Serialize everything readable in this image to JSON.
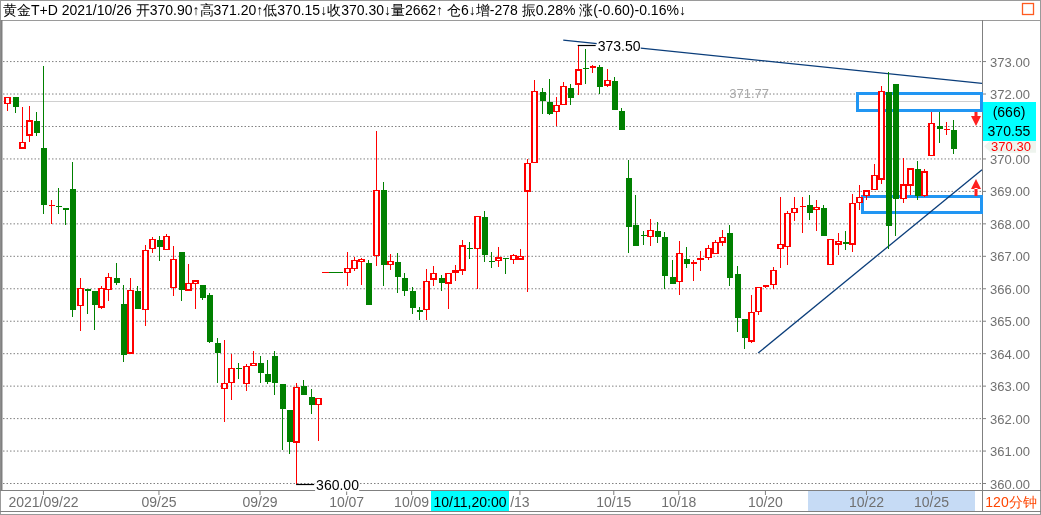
{
  "chart_data": {
    "type": "candlestick",
    "title": "黄金T+D 2021/10/26 开370.90↑高371.20↑低370.15↓收370.30↓量2662↑ 仓6↓增-278 振0.28% 涨(-0.60)-0.16%↓",
    "categories": [
      null,
      null,
      null,
      null,
      null,
      "2021/09/22",
      null,
      null,
      null,
      null,
      null,
      null,
      null,
      null,
      null,
      null,
      null,
      null,
      null,
      null,
      null,
      "09/25",
      null,
      null,
      null,
      null,
      null,
      null,
      null,
      null,
      null,
      null,
      null,
      null,
      null,
      "09/29",
      null,
      null,
      null,
      null,
      null,
      null,
      null,
      null,
      null,
      null,
      null,
      "10/07",
      null,
      null,
      null,
      null,
      null,
      null,
      null,
      null,
      "10/09",
      null,
      null,
      null,
      null,
      null,
      null,
      null,
      null,
      null,
      null,
      null,
      null,
      null,
      null,
      "/13",
      null,
      null,
      null,
      null,
      null,
      null,
      null,
      null,
      null,
      null,
      null,
      null,
      "10/15",
      null,
      null,
      null,
      null,
      null,
      null,
      null,
      null,
      "10/18",
      null,
      null,
      null,
      null,
      null,
      null,
      null,
      null,
      null,
      null,
      null,
      "10/20",
      null,
      null,
      null,
      null,
      null,
      null,
      null,
      null,
      null,
      null,
      null,
      null,
      null,
      "10/22",
      null,
      null,
      null,
      null,
      null,
      null,
      null,
      null,
      "10/25",
      null,
      null,
      null,
      null,
      null,
      null,
      null
    ],
    "ohlc": [
      [
        371.72,
        371.92,
        371.49,
        371.9
      ],
      [
        371.92,
        371.92,
        371.41,
        371.59
      ],
      [
        370.34,
        371.59,
        370.34,
        370.5
      ],
      [
        370.74,
        371.64,
        370.51,
        371.17
      ],
      [
        371.17,
        371.44,
        370.72,
        370.79
      ],
      [
        370.35,
        372.87,
        368.3,
        368.57
      ],
      [
        368.55,
        368.72,
        368.0,
        368.57
      ],
      [
        368.56,
        369.09,
        368.3,
        368.51
      ],
      [
        368.5,
        368.5,
        367.96,
        368.42
      ],
      [
        369.06,
        369.92,
        365.12,
        365.34
      ],
      [
        365.48,
        366.32,
        364.69,
        366.0
      ],
      [
        366.0,
        366.0,
        365.21,
        365.94
      ],
      [
        365.92,
        365.92,
        364.72,
        365.5
      ],
      [
        365.44,
        366.1,
        365.37,
        366.0
      ],
      [
        365.97,
        366.5,
        365.62,
        366.34
      ],
      [
        366.34,
        366.78,
        366.13,
        366.17
      ],
      [
        365.52,
        366.13,
        363.74,
        363.96
      ],
      [
        364.02,
        366.32,
        364.02,
        365.94
      ],
      [
        365.94,
        366.07,
        365.37,
        365.37
      ],
      [
        365.37,
        367.36,
        364.85,
        367.17
      ],
      [
        367.23,
        367.58,
        367.1,
        367.51
      ],
      [
        367.51,
        367.63,
        366.87,
        367.28
      ],
      [
        367.21,
        367.69,
        367.18,
        367.6
      ],
      [
        366.03,
        367.33,
        365.79,
        366.89
      ],
      [
        367.12,
        367.12,
        365.62,
        365.96
      ],
      [
        365.96,
        366.75,
        365.96,
        366.15
      ],
      [
        366.17,
        366.26,
        365.37,
        366.24
      ],
      [
        366.13,
        366.13,
        365.65,
        365.71
      ],
      [
        365.82,
        365.88,
        364.32,
        364.35
      ],
      [
        364.32,
        364.47,
        363.1,
        364.02
      ],
      [
        362.92,
        364.41,
        361.9,
        363.08
      ],
      [
        363.11,
        364.0,
        362.58,
        363.54
      ],
      [
        363.54,
        363.7,
        363.23,
        363.52
      ],
      [
        363.08,
        363.69,
        362.85,
        363.61
      ],
      [
        363.63,
        364.07,
        363.63,
        363.69
      ],
      [
        363.7,
        363.94,
        363.1,
        363.42
      ],
      [
        363.36,
        363.79,
        363.06,
        363.13
      ],
      [
        363.92,
        364.07,
        362.74,
        363.1
      ],
      [
        363.08,
        363.08,
        361.03,
        362.3
      ],
      [
        362.28,
        362.28,
        360.92,
        361.28
      ],
      [
        361.28,
        363.11,
        360.0,
        362.95
      ],
      [
        363.0,
        363.18,
        362.73,
        362.73
      ],
      [
        362.66,
        362.9,
        362.14,
        362.41
      ],
      [
        362.43,
        362.62,
        361.32,
        362.62
      ],
      [
        366.5,
        366.5,
        366.5,
        366.5
      ],
      [
        366.5,
        366.5,
        366.5,
        366.5
      ],
      [
        366.5,
        366.5,
        366.5,
        366.5
      ],
      [
        366.51,
        367.12,
        366.1,
        366.62
      ],
      [
        366.62,
        366.99,
        366.56,
        366.86
      ],
      [
        366.83,
        366.95,
        366.13,
        366.89
      ],
      [
        366.8,
        366.89,
        365.5,
        365.5
      ],
      [
        367.02,
        370.87,
        366.7,
        369.02
      ],
      [
        369.05,
        369.3,
        366.1,
        366.74
      ],
      [
        366.74,
        367.06,
        366.58,
        366.83
      ],
      [
        366.83,
        367.11,
        365.88,
        366.36
      ],
      [
        366.34,
        366.48,
        365.77,
        365.93
      ],
      [
        365.92,
        366.06,
        365.23,
        365.41
      ],
      [
        365.36,
        365.43,
        365.05,
        365.28
      ],
      [
        365.37,
        366.62,
        365.05,
        366.22
      ],
      [
        366.3,
        366.69,
        366.08,
        366.46
      ],
      [
        366.34,
        366.41,
        365.93,
        366.17
      ],
      [
        366.18,
        366.5,
        365.37,
        366.46
      ],
      [
        366.49,
        366.72,
        366.24,
        366.55
      ],
      [
        366.58,
        367.51,
        366.42,
        367.32
      ],
      [
        367.26,
        367.45,
        366.91,
        367.22
      ],
      [
        367.23,
        368.22,
        365.99,
        368.22
      ],
      [
        368.22,
        368.41,
        366.84,
        367.04
      ],
      [
        366.84,
        367.14,
        366.64,
        366.83
      ],
      [
        366.86,
        367.29,
        366.67,
        366.95
      ],
      [
        366.95,
        366.95,
        366.45,
        366.91
      ],
      [
        366.9,
        367.07,
        366.77,
        367.02
      ],
      [
        366.92,
        367.24,
        366.88,
        366.99
      ],
      [
        369.01,
        369.99,
        365.9,
        369.85
      ],
      [
        369.88,
        372.42,
        369.88,
        372.07
      ],
      [
        372.07,
        372.2,
        371.38,
        371.78
      ],
      [
        371.75,
        372.45,
        371.34,
        371.38
      ],
      [
        371.45,
        371.92,
        371.0,
        371.64
      ],
      [
        371.67,
        372.38,
        371.67,
        372.22
      ],
      [
        372.2,
        372.3,
        371.66,
        371.87
      ],
      [
        372.31,
        373.5,
        371.98,
        372.74
      ],
      [
        372.78,
        373.38,
        372.3,
        372.77
      ],
      [
        372.82,
        372.9,
        372.64,
        372.84
      ],
      [
        372.82,
        372.9,
        372.0,
        372.21
      ],
      [
        372.28,
        372.78,
        372.21,
        372.41
      ],
      [
        372.41,
        372.54,
        371.5,
        371.5
      ],
      [
        371.49,
        371.58,
        370.89,
        370.89
      ],
      [
        369.4,
        369.98,
        367.1,
        367.9
      ],
      [
        367.97,
        368.88,
        367.32,
        367.32
      ],
      [
        367.64,
        367.79,
        367.35,
        367.62
      ],
      [
        367.61,
        368.16,
        367.32,
        367.79
      ],
      [
        367.79,
        368.07,
        367.41,
        367.59
      ],
      [
        367.58,
        367.74,
        365.99,
        366.39
      ],
      [
        366.37,
        366.88,
        366.15,
        366.15
      ],
      [
        366.22,
        367.46,
        365.81,
        367.08
      ],
      [
        366.93,
        367.28,
        366.64,
        366.76
      ],
      [
        366.77,
        366.9,
        366.24,
        366.79
      ],
      [
        366.89,
        367.15,
        366.55,
        366.93
      ],
      [
        366.96,
        367.36,
        366.89,
        367.24
      ],
      [
        367.08,
        367.49,
        367.08,
        367.42
      ],
      [
        367.44,
        367.82,
        367.33,
        367.57
      ],
      [
        367.71,
        367.97,
        366.08,
        366.33
      ],
      [
        366.44,
        366.69,
        364.67,
        365.1
      ],
      [
        365.08,
        365.08,
        364.13,
        364.49
      ],
      [
        364.39,
        365.8,
        364.33,
        365.27
      ],
      [
        365.31,
        366.06,
        365.18,
        366.03
      ],
      [
        366.06,
        366.1,
        366.03,
        366.08
      ],
      [
        366.13,
        366.67,
        366.0,
        366.56
      ],
      [
        367.23,
        368.82,
        366.65,
        367.36
      ],
      [
        367.31,
        368.41,
        366.73,
        368.31
      ],
      [
        368.34,
        368.82,
        368.1,
        368.48
      ],
      [
        368.52,
        368.82,
        367.71,
        368.53
      ],
      [
        368.59,
        368.9,
        368.12,
        368.33
      ],
      [
        368.44,
        368.74,
        367.77,
        368.5
      ],
      [
        368.5,
        368.59,
        367.62,
        367.62
      ],
      [
        366.74,
        367.51,
        366.74,
        367.51
      ],
      [
        367.38,
        367.72,
        367.04,
        367.45
      ],
      [
        367.45,
        367.79,
        367.18,
        367.38
      ],
      [
        367.38,
        368.92,
        367.13,
        368.62
      ],
      [
        368.67,
        369.21,
        368.43,
        368.82
      ],
      [
        368.88,
        369.03,
        368.75,
        369.01
      ],
      [
        369.05,
        369.83,
        369.05,
        369.48
      ],
      [
        369.38,
        372.26,
        369.23,
        372.07
      ],
      [
        372.05,
        372.67,
        367.21,
        367.93
      ],
      [
        372.32,
        372.32,
        367.64,
        368.76
      ],
      [
        368.79,
        370.02,
        368.64,
        369.2
      ],
      [
        369.2,
        369.69,
        368.9,
        369.69
      ],
      [
        369.69,
        369.95,
        368.74,
        368.87
      ],
      [
        368.87,
        369.69,
        368.82,
        369.6
      ],
      [
        370.11,
        371.44,
        370.08,
        371.1
      ],
      [
        371.03,
        371.44,
        370.48,
        370.92
      ],
      [
        370.88,
        371.14,
        370.75,
        370.9
      ],
      [
        370.9,
        371.2,
        370.15,
        370.3
      ],
      null,
      null,
      null,
      null
    ],
    "colors": [
      "#ff0000",
      "#008000",
      "#ff0000",
      "#ff0000",
      "#008000",
      "#008000",
      "#ff0000",
      "#008000",
      "#008000",
      "#008000",
      "#ff0000",
      "#008000",
      "#008000",
      "#ff0000",
      "#ff0000",
      "#008000",
      "#008000",
      "#ff0000",
      "#008000",
      "#ff0000",
      "#ff0000",
      "#008000",
      "#ff0000",
      "#ff0000",
      "#008000",
      "#ff0000",
      "#ff0000",
      "#008000",
      "#008000",
      "#008000",
      "#ff0000",
      "#ff0000",
      "#008000",
      "#ff0000",
      "#ff0000",
      "#008000",
      "#008000",
      "#008000",
      "#008000",
      "#008000",
      "#ff0000",
      "#008000",
      "#008000",
      "#ff0000",
      "#ff0000",
      "#008000",
      "#008000",
      "#ff0000",
      "#ff0000",
      "#ff0000",
      "#008000",
      "#ff0000",
      "#008000",
      "#ff0000",
      "#008000",
      "#008000",
      "#008000",
      "#008000",
      "#ff0000",
      "#ff0000",
      "#008000",
      "#ff0000",
      "#ff0000",
      "#ff0000",
      "#008000",
      "#ff0000",
      "#008000",
      "#008000",
      "#ff0000",
      "#008000",
      "#ff0000",
      "#ff0000",
      "#ff0000",
      "#ff0000",
      "#008000",
      "#008000",
      "#ff0000",
      "#ff0000",
      "#008000",
      "#ff0000",
      "#008000",
      "#ff0000",
      "#008000",
      "#ff0000",
      "#008000",
      "#008000",
      "#008000",
      "#008000",
      "#008000",
      "#ff0000",
      "#008000",
      "#008000",
      "#008000",
      "#ff0000",
      "#008000",
      "#ff0000",
      "#ff0000",
      "#ff0000",
      "#ff0000",
      "#ff0000",
      "#008000",
      "#008000",
      "#008000",
      "#ff0000",
      "#ff0000",
      "#ff0000",
      "#ff0000",
      "#ff0000",
      "#ff0000",
      "#ff0000",
      "#ff0000",
      "#008000",
      "#ff0000",
      "#008000",
      "#ff0000",
      "#ff0000",
      "#008000",
      "#ff0000",
      "#ff0000",
      "#ff0000",
      "#ff0000",
      "#ff0000",
      "#008000",
      "#008000",
      "#ff0000",
      "#ff0000",
      "#008000",
      "#ff0000",
      "#ff0000",
      "#008000",
      "#ff0000",
      "#008000",
      null,
      null,
      null,
      null
    ],
    "series": [
      {
        "type": "line",
        "color": "#0a3d7a",
        "values": [
          null,
          null,
          null,
          null,
          null,
          null,
          null,
          null,
          null,
          null,
          null,
          null,
          null,
          null,
          null,
          null,
          null,
          null,
          null,
          null,
          null,
          null,
          null,
          null,
          null,
          null,
          null,
          null,
          null,
          null,
          null,
          null,
          null,
          null,
          null,
          null,
          null,
          null,
          null,
          null,
          null,
          null,
          null,
          null,
          null,
          null,
          null,
          null,
          null,
          null,
          null,
          null,
          null,
          null,
          null,
          null,
          null,
          null,
          null,
          null,
          null,
          null,
          null,
          null,
          null,
          null,
          null,
          null,
          null,
          null,
          null,
          null,
          null,
          null,
          null,
          null,
          null,
          373.66,
          null,
          null,
          null,
          null,
          null,
          null,
          null,
          null,
          null,
          null,
          null,
          null,
          null,
          null,
          null,
          null,
          null,
          null,
          null,
          null,
          null,
          null,
          null,
          null,
          null,
          null,
          null,
          null,
          null,
          null,
          null,
          null,
          null,
          null,
          null,
          null,
          null,
          null,
          null,
          null,
          null,
          null,
          null,
          null,
          null,
          null,
          null,
          null,
          null,
          null,
          null,
          null,
          null,
          null,
          null,
          null,
          null,
          372.33
        ]
      },
      {
        "type": "line",
        "color": "#0a3d7a",
        "values": [
          null,
          null,
          null,
          null,
          null,
          null,
          null,
          null,
          null,
          null,
          null,
          null,
          null,
          null,
          null,
          null,
          null,
          null,
          null,
          null,
          null,
          null,
          null,
          null,
          null,
          null,
          null,
          null,
          null,
          null,
          null,
          null,
          null,
          null,
          null,
          null,
          null,
          null,
          null,
          null,
          null,
          null,
          null,
          null,
          null,
          null,
          null,
          null,
          null,
          null,
          null,
          null,
          null,
          null,
          null,
          null,
          null,
          null,
          null,
          null,
          null,
          null,
          null,
          null,
          null,
          null,
          null,
          null,
          null,
          null,
          null,
          null,
          null,
          null,
          null,
          null,
          null,
          null,
          null,
          null,
          null,
          null,
          null,
          null,
          null,
          null,
          null,
          null,
          null,
          null,
          null,
          null,
          null,
          null,
          null,
          null,
          null,
          null,
          null,
          null,
          null,
          null,
          null,
          null,
          364.02,
          null,
          null,
          null,
          null,
          null,
          null,
          null,
          null,
          null,
          null,
          null,
          null,
          null,
          null,
          null,
          null,
          null,
          null,
          null,
          null,
          null,
          null,
          null,
          null,
          null,
          null,
          null,
          null,
          null,
          null,
          369.67
        ]
      }
    ],
    "ylim": [
      359.8,
      374.25
    ],
    "yticks": [
      {
        "value": 360,
        "label": "360.00"
      },
      {
        "value": 361,
        "label": "361.00"
      },
      {
        "value": 362,
        "label": "362.00"
      },
      {
        "value": 363,
        "label": "363.00"
      },
      {
        "value": 364,
        "label": "364.00"
      },
      {
        "value": 365,
        "label": "365.00"
      },
      {
        "value": 366,
        "label": "366.00"
      },
      {
        "value": 367,
        "label": "367.00"
      },
      {
        "value": 368,
        "label": "368.00"
      },
      {
        "value": 369,
        "label": "369.00"
      },
      {
        "value": 370,
        "label": "370.00"
      },
      {
        "value": 371,
        "label": null
      },
      {
        "value": 372,
        "label": "372.00"
      },
      {
        "value": 373,
        "label": "373.00"
      }
    ],
    "grid": "y",
    "ref_lines": [
      {
        "axis": "y",
        "value": 371.77,
        "label": "371.77",
        "color": "#d0d0d0"
      }
    ],
    "annotations": [
      {
        "text": "373.50",
        "y": 373.5
      },
      {
        "text": "360.00",
        "y": 360.0
      },
      "370.30",
      "(666)",
      "370.55",
      "10/11,20:00",
      "120分钟"
    ]
  }
}
